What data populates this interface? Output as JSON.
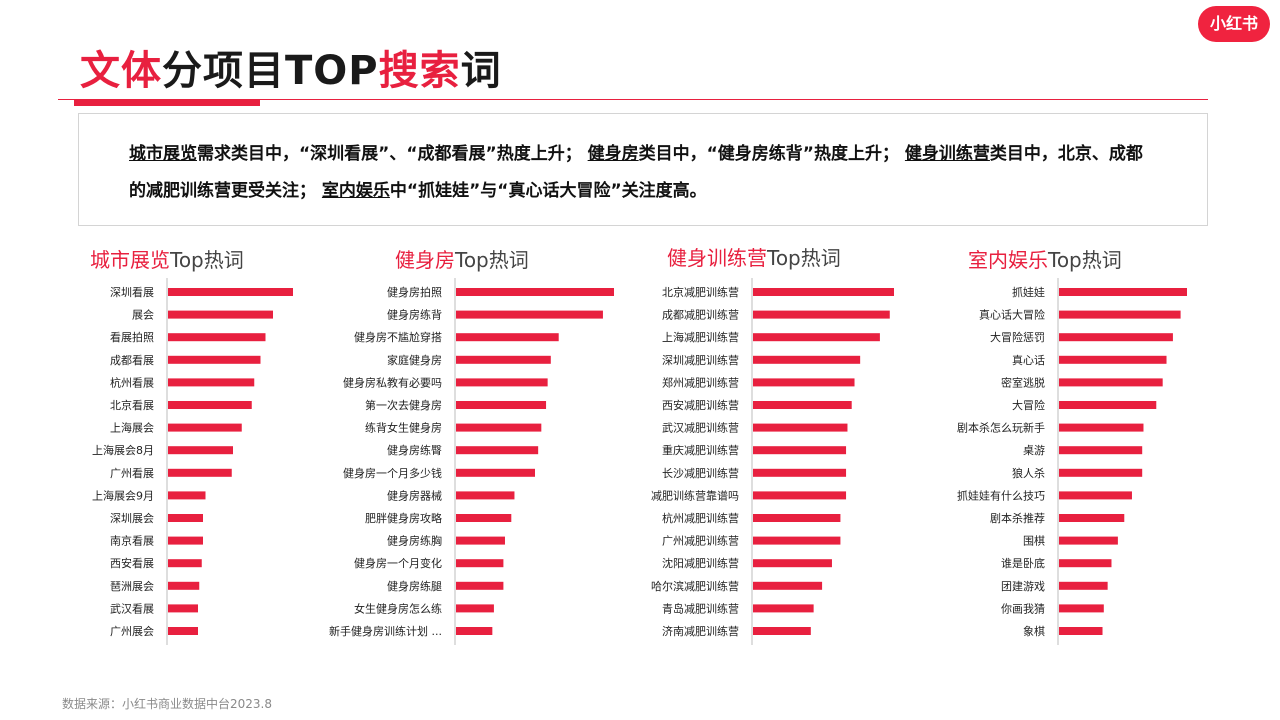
{
  "title": {
    "red1": "文体",
    "black1": "分项目TOP",
    "red2": "搜索",
    "black2": "词"
  },
  "logo": {
    "text": "小红书"
  },
  "summary": {
    "s1": "城市展览",
    "s2": "需求类目中，“深圳看展”、“成都看展”热度上升；",
    "s3": "健身房",
    "s4": "类目中，“健身房练背”热度上升；",
    "s5": "健身训练营",
    "s6": "类目中，北京、成都的减肥训练营更受关注；",
    "s7": "室内娱乐",
    "s8": "中“抓娃娃”与“真心话大冒险”关注度高。"
  },
  "chart_data": [
    {
      "type": "bar",
      "orientation": "horizontal",
      "title_red": "城市展览",
      "title_black": "Top热词",
      "categories": [
        "深圳看展",
        "展会",
        "看展拍照",
        "成都看展",
        "杭州看展",
        "北京看展",
        "上海展会",
        "上海展会8月",
        "广州看展",
        "上海展会9月",
        "深圳展会",
        "南京看展",
        "西安看展",
        "琶洲展会",
        "武汉看展",
        "广州展会"
      ],
      "values": [
        100,
        84,
        78,
        74,
        69,
        67,
        59,
        52,
        51,
        30,
        28,
        28,
        27,
        25,
        24,
        24
      ],
      "xlim": [
        0,
        100
      ]
    },
    {
      "type": "bar",
      "orientation": "horizontal",
      "title_red": "健身房",
      "title_black": "Top热词",
      "categories": [
        "健身房拍照",
        "健身房练背",
        "健身房不尴尬穿搭",
        "家庭健身房",
        "健身房私教有必要吗",
        "第一次去健身房",
        "练背女生健身房",
        "健身房练臀",
        "健身房一个月多少钱",
        "健身房器械",
        "肥胖健身房攻略",
        "健身房练胸",
        "健身房一个月变化",
        "健身房练腿",
        "女生健身房怎么练",
        "新手健身房训练计划 ..."
      ],
      "values": [
        100,
        93,
        65,
        60,
        58,
        57,
        54,
        52,
        50,
        37,
        35,
        31,
        30,
        30,
        24,
        23
      ],
      "xlim": [
        0,
        100
      ]
    },
    {
      "type": "bar",
      "orientation": "horizontal",
      "title_red": "健身训练营",
      "title_black": "Top热词",
      "categories": [
        "北京减肥训练营",
        "成都减肥训练营",
        "上海减肥训练营",
        "深圳减肥训练营",
        "郑州减肥训练营",
        "西安减肥训练营",
        "武汉减肥训练营",
        "重庆减肥训练营",
        "长沙减肥训练营",
        "减肥训练营靠谱吗",
        "杭州减肥训练营",
        "广州减肥训练营",
        "沈阳减肥训练营",
        "哈尔滨减肥训练营",
        "青岛减肥训练营",
        "济南减肥训练营"
      ],
      "values": [
        100,
        97,
        90,
        76,
        72,
        70,
        67,
        66,
        66,
        66,
        62,
        62,
        56,
        49,
        43,
        41
      ],
      "xlim": [
        0,
        100
      ]
    },
    {
      "type": "bar",
      "orientation": "horizontal",
      "title_red": "室内娱乐",
      "title_black": "Top热词",
      "categories": [
        "抓娃娃",
        "真心话大冒险",
        "大冒险惩罚",
        "真心话",
        "密室逃脱",
        "大冒险",
        "剧本杀怎么玩新手",
        "桌游",
        "狼人杀",
        "抓娃娃有什么技巧",
        "剧本杀推荐",
        "围棋",
        "谁是卧底",
        "团建游戏",
        "你画我猜",
        "象棋"
      ],
      "values": [
        100,
        95,
        89,
        84,
        81,
        76,
        66,
        65,
        65,
        57,
        51,
        46,
        41,
        38,
        35,
        34
      ],
      "xlim": [
        0,
        100
      ]
    }
  ],
  "footer": {
    "source": "数据来源：小红书商业数据中台2023.8"
  }
}
